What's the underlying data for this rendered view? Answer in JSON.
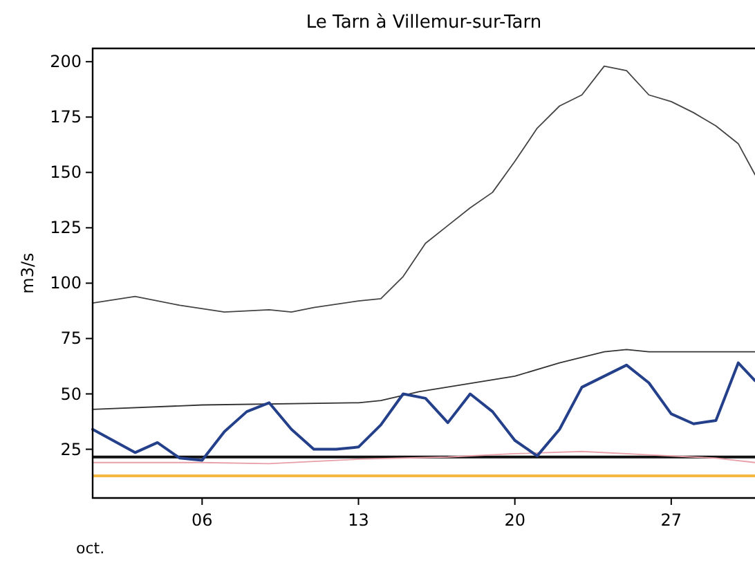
{
  "chart_data": {
    "type": "line",
    "title": "Le Tarn à Villemur-sur-Tarn",
    "ylabel": "m3/s",
    "xlabel": "oct.",
    "xlim": [
      1.1,
      30.75
    ],
    "xticks": [
      {
        "value": 6,
        "label": "06"
      },
      {
        "value": 13,
        "label": "13"
      },
      {
        "value": 20,
        "label": "20"
      },
      {
        "value": 27,
        "label": "27"
      }
    ],
    "ylim": [
      3,
      206
    ],
    "yticks": [
      25,
      50,
      75,
      100,
      125,
      150,
      175,
      200
    ],
    "grid": false,
    "marker": "none",
    "line_style": "solid",
    "series": [
      {
        "color": "#444444",
        "x": [
          1.1,
          3,
          5,
          7,
          9,
          10,
          11,
          13,
          14,
          15,
          16,
          17,
          18,
          19,
          20,
          21,
          22,
          23,
          24,
          25,
          26,
          27,
          28,
          29,
          30,
          30.75
        ],
        "values": [
          91,
          94,
          90,
          87,
          88,
          87,
          89,
          92,
          93,
          103,
          118,
          126,
          134,
          141,
          155,
          170,
          180,
          185,
          198,
          196,
          185,
          182,
          177,
          171,
          163,
          149
        ]
      },
      {
        "color": "#333333",
        "x": [
          1.1,
          6,
          13,
          14,
          15.7,
          20,
          22,
          24,
          25,
          26,
          30.75
        ],
        "values": [
          43,
          45,
          46,
          47,
          51,
          58,
          64,
          69,
          70,
          69,
          69
        ]
      },
      {
        "color": "#e8a0a8",
        "x": [
          1.1,
          6,
          9,
          13,
          17,
          20,
          23,
          26,
          29,
          30.75
        ],
        "values": [
          19,
          19,
          18.5,
          20.5,
          21.5,
          23,
          24,
          22.5,
          21,
          19
        ]
      },
      {
        "color": "#24408a",
        "x": [
          1.1,
          3,
          4,
          5,
          6,
          7,
          8,
          9,
          10,
          11,
          12,
          13,
          14,
          15,
          16,
          17,
          18,
          19,
          20,
          21,
          22,
          23,
          24,
          25,
          26,
          27,
          28,
          29,
          30,
          30.75
        ],
        "values": [
          34,
          23.5,
          28,
          21,
          20,
          33,
          42,
          46,
          34,
          25,
          25,
          26,
          36,
          50,
          48,
          37,
          50,
          42,
          29,
          22,
          34,
          53,
          58,
          63,
          55,
          41,
          36.5,
          38,
          64,
          56
        ]
      }
    ],
    "ref_lines": [
      {
        "axis": "y",
        "value": 21.5,
        "color": "#111111"
      },
      {
        "axis": "y",
        "value": 13,
        "color": "#f5b942"
      }
    ]
  }
}
